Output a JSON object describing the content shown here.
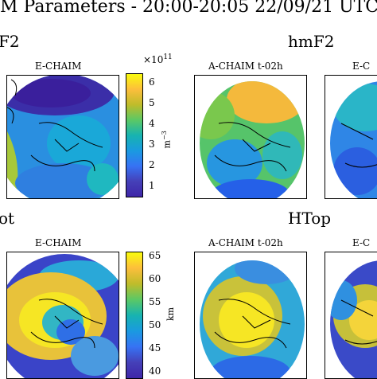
{
  "header": {
    "title": "M Parameters - 20:00-20:05 22/09/21 UTC"
  },
  "rows": [
    {
      "label_left": "F2",
      "label_right": "hmF2",
      "colorbar": {
        "exponent": "×10",
        "exponent_power": "11",
        "unit": "m",
        "unit_power": "−3",
        "ticks": [
          "6",
          "5",
          "4",
          "3",
          "2",
          "1"
        ],
        "colormap": "parula"
      },
      "panels": [
        {
          "title": "E-CHAIM",
          "icon": "polar-map"
        },
        {
          "title": "A-CHAIM t-02h",
          "icon": "polar-map"
        },
        {
          "title": "E-C",
          "icon": "polar-map"
        }
      ]
    },
    {
      "label_left": "ot",
      "label_right": "HTop",
      "colorbar": {
        "unit": "km",
        "ticks": [
          "65",
          "60",
          "55",
          "50",
          "45",
          "40"
        ],
        "colormap": "parula"
      },
      "panels": [
        {
          "title": "E-CHAIM",
          "icon": "polar-map"
        },
        {
          "title": "A-CHAIM t-02h",
          "icon": "polar-map"
        },
        {
          "title": "E-C",
          "icon": "polar-map"
        }
      ]
    }
  ]
}
